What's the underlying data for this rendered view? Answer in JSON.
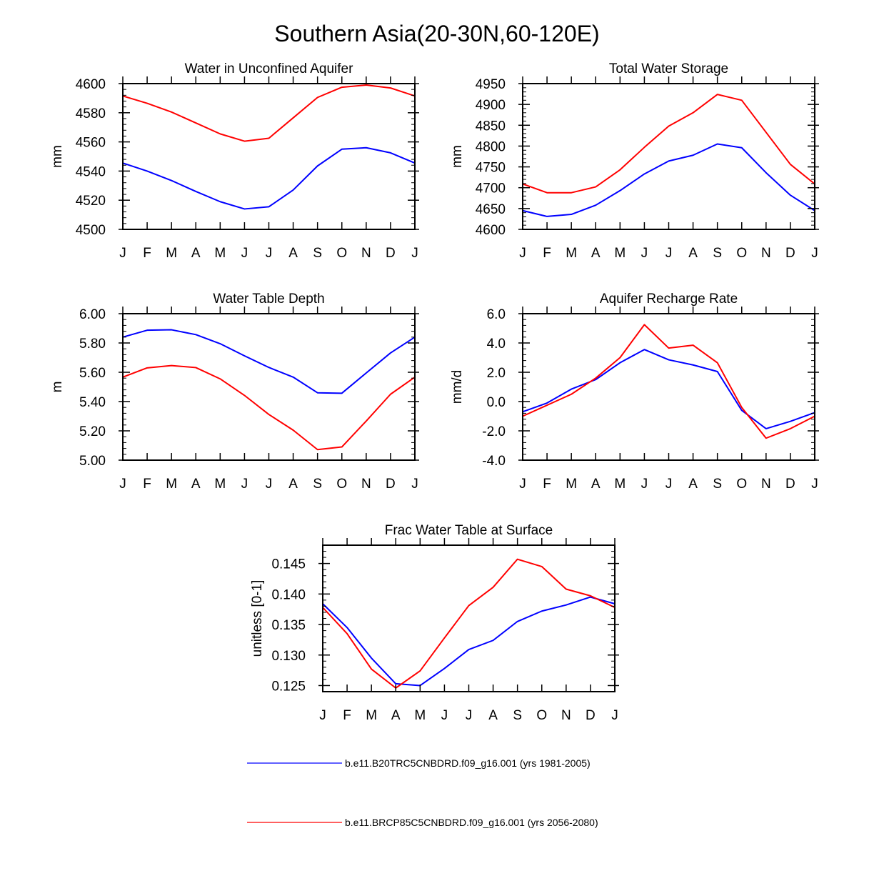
{
  "figure": {
    "title": "Southern Asia(20-30N,60-120E)"
  },
  "colors": {
    "series1": "#0000ff",
    "series2": "#ff0000",
    "axis": "#000000",
    "background": "#ffffff"
  },
  "legend": [
    {
      "label": "b.e11.B20TRC5CNBDRD.f09_g16.001 (yrs 1981-2005)",
      "color": "#0000ff"
    },
    {
      "label": "b.e11.BRCP85C5CNBDRD.f09_g16.001 (yrs 2056-2080)",
      "color": "#ff0000"
    }
  ],
  "chart_data": [
    {
      "type": "line",
      "title": "Water in Unconfined Aquifer",
      "ylabel": "mm",
      "categories": [
        "J",
        "F",
        "M",
        "A",
        "M",
        "J",
        "J",
        "A",
        "S",
        "O",
        "N",
        "D",
        "J"
      ],
      "ylim": [
        4500,
        4600
      ],
      "yticks": [
        4500,
        4520,
        4540,
        4560,
        4580,
        4600
      ],
      "ytick_labels": [
        "4500",
        "4520",
        "4540",
        "4560",
        "4580",
        "4600"
      ],
      "series": [
        {
          "values": [
            4545.5,
            4540,
            4533.5,
            4526,
            4519,
            4514,
            4515.5,
            4527,
            4543.5,
            4555,
            4556,
            4552.5,
            4545.5
          ]
        },
        {
          "values": [
            4591.5,
            4586.5,
            4580.5,
            4573,
            4565.5,
            4560.5,
            4562.5,
            4576.5,
            4590.5,
            4597.5,
            4599,
            4597,
            4591.5
          ]
        }
      ]
    },
    {
      "type": "line",
      "title": "Total Water Storage",
      "ylabel": "mm",
      "categories": [
        "J",
        "F",
        "M",
        "A",
        "M",
        "J",
        "J",
        "A",
        "S",
        "O",
        "N",
        "D",
        "J"
      ],
      "ylim": [
        4600,
        4950
      ],
      "yticks": [
        4600,
        4650,
        4700,
        4750,
        4800,
        4850,
        4900,
        4950
      ],
      "ytick_labels": [
        "4600",
        "4650",
        "4700",
        "4750",
        "4800",
        "4850",
        "4900",
        "4950"
      ],
      "series": [
        {
          "values": [
            4645,
            4631,
            4636,
            4658,
            4693,
            4733,
            4764,
            4778,
            4805,
            4796,
            4736,
            4682,
            4645
          ]
        },
        {
          "values": [
            4709,
            4688,
            4688,
            4702,
            4743,
            4797,
            4848,
            4880,
            4924,
            4910,
            4833,
            4756,
            4709
          ]
        }
      ]
    },
    {
      "type": "line",
      "title": "Water Table Depth",
      "ylabel": "m",
      "categories": [
        "J",
        "F",
        "M",
        "A",
        "M",
        "J",
        "J",
        "A",
        "S",
        "O",
        "N",
        "D",
        "J"
      ],
      "ylim": [
        5.0,
        6.0
      ],
      "yticks": [
        5.0,
        5.2,
        5.4,
        5.6,
        5.8,
        6.0
      ],
      "ytick_labels": [
        "5.00",
        "5.20",
        "5.40",
        "5.60",
        "5.80",
        "6.00"
      ],
      "series": [
        {
          "values": [
            5.84,
            5.887,
            5.89,
            5.857,
            5.795,
            5.712,
            5.633,
            5.567,
            5.46,
            5.457,
            5.595,
            5.732,
            5.84
          ]
        },
        {
          "values": [
            5.567,
            5.63,
            5.646,
            5.632,
            5.555,
            5.442,
            5.312,
            5.205,
            5.072,
            5.09,
            5.267,
            5.45,
            5.567
          ]
        }
      ]
    },
    {
      "type": "line",
      "title": "Aquifer Recharge Rate",
      "ylabel": "mm/d",
      "categories": [
        "J",
        "F",
        "M",
        "A",
        "M",
        "J",
        "J",
        "A",
        "S",
        "O",
        "N",
        "D",
        "J"
      ],
      "ylim": [
        -4.0,
        6.0
      ],
      "yticks": [
        -4,
        -2,
        0,
        2,
        4,
        6
      ],
      "ytick_labels": [
        "-4.0",
        "-2.0",
        "0.0",
        "2.0",
        "4.0",
        "6.0"
      ],
      "series": [
        {
          "values": [
            -0.7,
            -0.1,
            0.85,
            1.5,
            2.65,
            3.55,
            2.85,
            2.5,
            2.05,
            -0.6,
            -1.85,
            -1.35,
            -0.75
          ]
        },
        {
          "values": [
            -1.0,
            -0.25,
            0.5,
            1.6,
            3.0,
            5.25,
            3.65,
            3.85,
            2.65,
            -0.4,
            -2.5,
            -1.85,
            -1.0
          ]
        }
      ]
    },
    {
      "type": "line",
      "title": "Frac Water Table at Surface",
      "ylabel": "unitless [0-1]",
      "categories": [
        "J",
        "F",
        "M",
        "A",
        "M",
        "J",
        "J",
        "A",
        "S",
        "O",
        "N",
        "D",
        "J"
      ],
      "ylim": [
        0.124,
        0.148
      ],
      "yticks": [
        0.125,
        0.13,
        0.135,
        0.14,
        0.145
      ],
      "ytick_labels": [
        "0.125",
        "0.130",
        "0.135",
        "0.140",
        "0.145"
      ],
      "series": [
        {
          "values": [
            0.1384,
            0.1345,
            0.1295,
            0.1253,
            0.125,
            0.1278,
            0.1309,
            0.1324,
            0.1355,
            0.1372,
            0.1382,
            0.1395,
            0.1384
          ]
        },
        {
          "values": [
            0.1378,
            0.1335,
            0.1277,
            0.1246,
            0.1274,
            0.1328,
            0.1381,
            0.1411,
            0.1457,
            0.1445,
            0.1408,
            0.1397,
            0.1378
          ]
        }
      ]
    }
  ]
}
